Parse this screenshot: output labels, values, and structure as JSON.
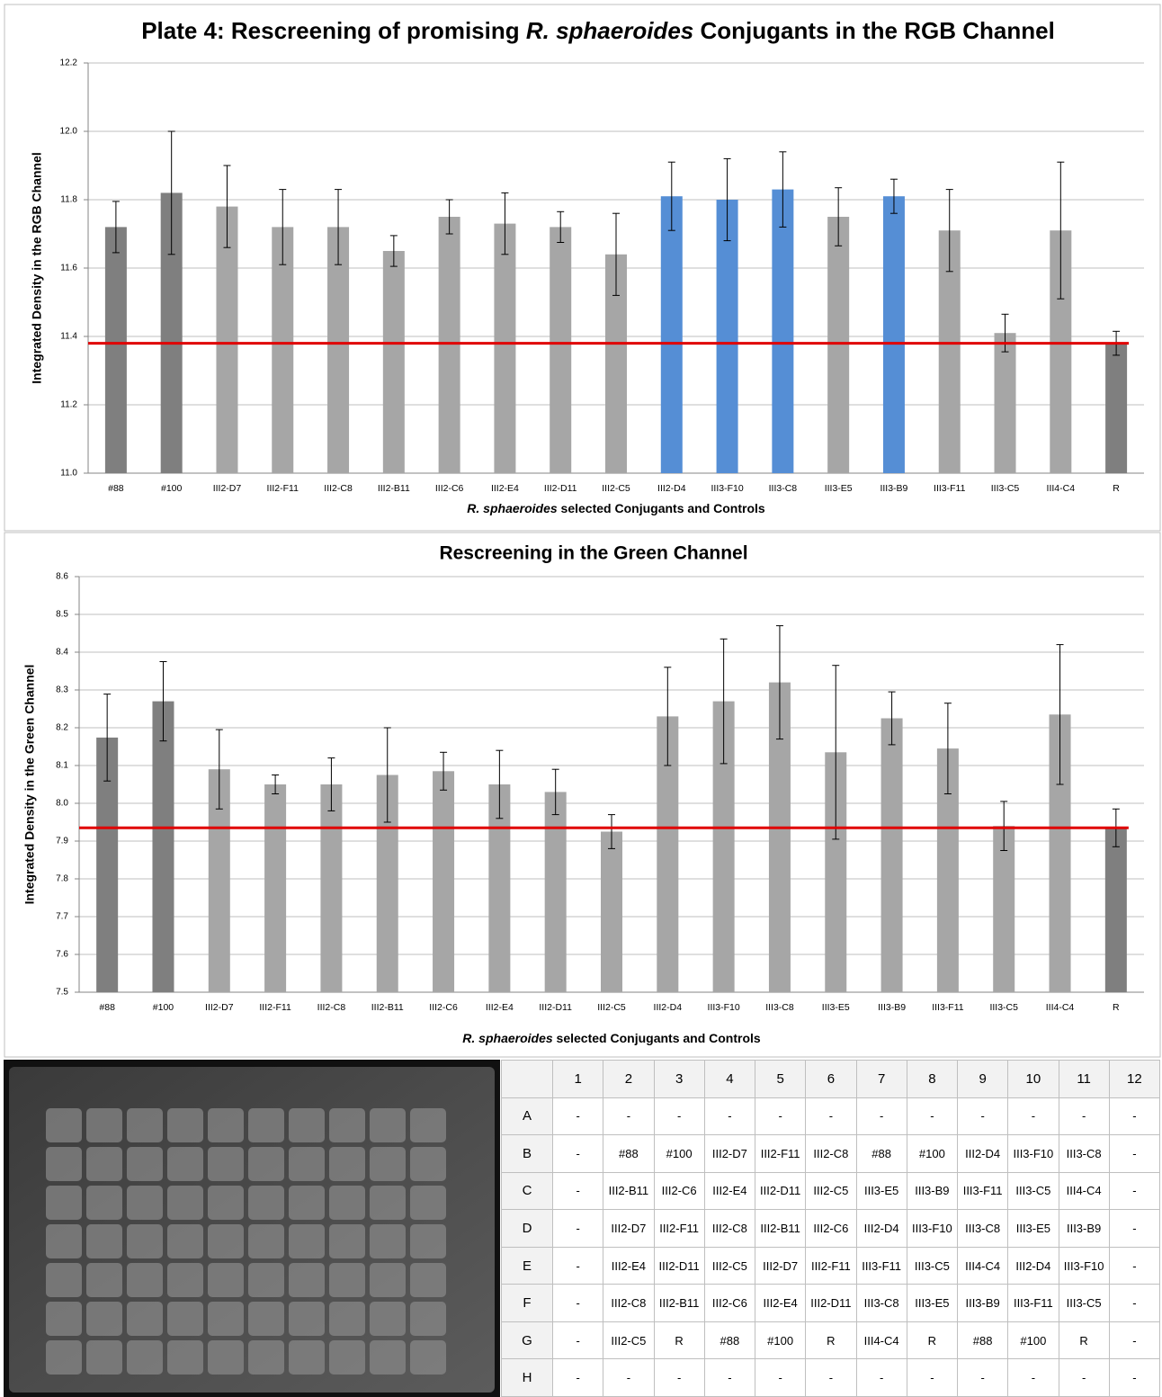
{
  "chart_data": [
    {
      "type": "bar",
      "title": [
        "Plate 4: Rescreening of promising ",
        "R. sphaeroides",
        " Conjugants in the RGB Channel"
      ],
      "ylabel": "Integrated Density in the RGB Channel",
      "xlabel": [
        "R. sphaeroides",
        " selected Conjugants and Controls"
      ],
      "categories": [
        "#88",
        "#100",
        "III2-D7",
        "III2-F11",
        "III2-C8",
        "III2-B11",
        "III2-C6",
        "III2-E4",
        "III2-D11",
        "III2-C5",
        "III2-D4",
        "III3-F10",
        "III3-C8",
        "III3-E5",
        "III3-B9",
        "III3-F11",
        "III3-C5",
        "III4-C4",
        "R"
      ],
      "values": [
        11.72,
        11.82,
        11.78,
        11.72,
        11.72,
        11.65,
        11.75,
        11.73,
        11.72,
        11.64,
        11.81,
        11.8,
        11.83,
        11.75,
        11.81,
        11.71,
        11.41,
        11.71,
        11.38
      ],
      "errors": [
        0.075,
        0.18,
        0.12,
        0.11,
        0.11,
        0.045,
        0.05,
        0.09,
        0.045,
        0.12,
        0.1,
        0.12,
        0.11,
        0.085,
        0.05,
        0.12,
        0.055,
        0.2,
        0.035
      ],
      "colors": [
        "#7f7f7f",
        "#7f7f7f",
        "#a6a6a6",
        "#a6a6a6",
        "#a6a6a6",
        "#a6a6a6",
        "#a6a6a6",
        "#a6a6a6",
        "#a6a6a6",
        "#a6a6a6",
        "#558ed5",
        "#558ed5",
        "#558ed5",
        "#a6a6a6",
        "#558ed5",
        "#a6a6a6",
        "#a6a6a6",
        "#a6a6a6",
        "#7f7f7f"
      ],
      "reference_line": 11.38,
      "reference_color": "#e00000",
      "ylim": [
        11.0,
        12.2
      ],
      "yticks": [
        {
          "value": 11,
          "label": "11.0"
        },
        11.2,
        11.4,
        11.6,
        11.8,
        {
          "value": 12,
          "label": "12.0"
        },
        12.2
      ],
      "grid": true
    },
    {
      "type": "bar",
      "title": "Rescreening in the Green Channel",
      "ylabel": "Integrated Density in the Green Channel",
      "xlabel": [
        "R. sphaeroides",
        " selected Conjugants and Controls"
      ],
      "categories": [
        "#88",
        "#100",
        "III2-D7",
        "III2-F11",
        "III2-C8",
        "III2-B11",
        "III2-C6",
        "III2-E4",
        "III2-D11",
        "III2-C5",
        "III2-D4",
        "III3-F10",
        "III3-C8",
        "III3-E5",
        "III3-B9",
        "III3-F11",
        "III3-C5",
        "III4-C4",
        "R"
      ],
      "values": [
        8.174,
        8.27,
        8.09,
        8.05,
        8.05,
        8.075,
        8.085,
        8.05,
        8.03,
        7.925,
        8.23,
        8.27,
        8.32,
        8.135,
        8.225,
        8.145,
        7.94,
        8.235,
        7.935
      ],
      "errors": [
        0.115,
        0.105,
        0.105,
        0.025,
        0.07,
        0.125,
        0.05,
        0.09,
        0.06,
        0.045,
        0.13,
        0.165,
        0.15,
        0.23,
        0.07,
        0.12,
        0.065,
        0.185,
        0.05
      ],
      "colors": [
        "#7f7f7f",
        "#7f7f7f",
        "#a6a6a6",
        "#a6a6a6",
        "#a6a6a6",
        "#a6a6a6",
        "#a6a6a6",
        "#a6a6a6",
        "#a6a6a6",
        "#a6a6a6",
        "#a6a6a6",
        "#a6a6a6",
        "#a6a6a6",
        "#a6a6a6",
        "#a6a6a6",
        "#a6a6a6",
        "#a6a6a6",
        "#a6a6a6",
        "#7f7f7f"
      ],
      "reference_line": 7.935,
      "reference_color": "#e00000",
      "ylim": [
        7.5,
        8.6
      ],
      "yticks": [
        7.5,
        7.6,
        7.7,
        7.8,
        7.9,
        {
          "value": 8,
          "label": "8.0"
        },
        8.1,
        8.2,
        8.3,
        8.4,
        8.5,
        8.6
      ],
      "grid": true
    }
  ],
  "table": {
    "columns": [
      "1",
      "2",
      "3",
      "4",
      "5",
      "6",
      "7",
      "8",
      "9",
      "10",
      "11",
      "12"
    ],
    "rows": [
      {
        "label": "A",
        "cells": [
          "-",
          "-",
          "-",
          "-",
          "-",
          "-",
          "-",
          "-",
          "-",
          "-",
          "-",
          "-"
        ]
      },
      {
        "label": "B",
        "cells": [
          "-",
          "#88",
          "#100",
          "III2-D7",
          "III2-F11",
          "III2-C8",
          "#88",
          "#100",
          "III2-D4",
          "III3-F10",
          "III3-C8",
          "-"
        ]
      },
      {
        "label": "C",
        "cells": [
          "-",
          "III2-B11",
          "III2-C6",
          "III2-E4",
          "III2-D11",
          "III2-C5",
          "III3-E5",
          "III3-B9",
          "III3-F11",
          "III3-C5",
          "III4-C4",
          "-"
        ]
      },
      {
        "label": "D",
        "cells": [
          "-",
          "III2-D7",
          "III2-F11",
          "III2-C8",
          "III2-B11",
          "III2-C6",
          "III2-D4",
          "III3-F10",
          "III3-C8",
          "III3-E5",
          "III3-B9",
          "-"
        ]
      },
      {
        "label": "E",
        "cells": [
          "-",
          "III2-E4",
          "III2-D11",
          "III2-C5",
          "III2-D7",
          "III2-F11",
          "III3-F11",
          "III3-C5",
          "III4-C4",
          "III2-D4",
          "III3-F10",
          "-"
        ]
      },
      {
        "label": "F",
        "cells": [
          "-",
          "III2-C8",
          "III2-B11",
          "III2-C6",
          "III2-E4",
          "III2-D11",
          "III3-C8",
          "III3-E5",
          "III3-B9",
          "III3-F11",
          "III3-C5",
          "-"
        ]
      },
      {
        "label": "G",
        "cells": [
          "-",
          "III2-C5",
          "R",
          "#88",
          "#100",
          "R",
          "III4-C4",
          "R",
          "#88",
          "#100",
          "R",
          "-"
        ]
      },
      {
        "label": "H",
        "cells": [
          "-",
          "-",
          "-",
          "-",
          "-",
          "-",
          "-",
          "-",
          "-",
          "-",
          "-",
          "-"
        ]
      }
    ]
  }
}
